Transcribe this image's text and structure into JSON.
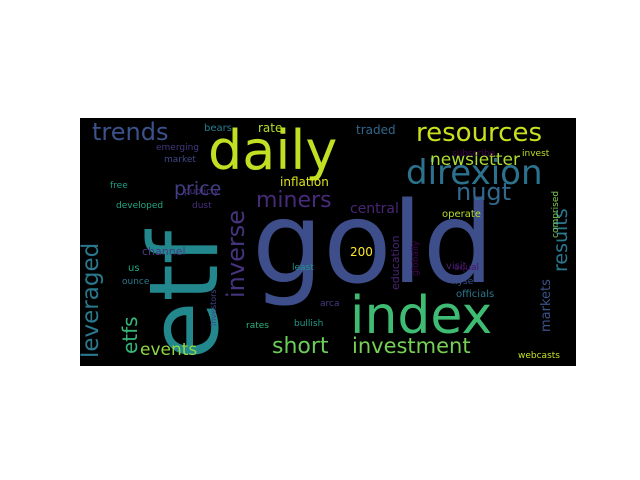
{
  "words": [
    {
      "id": "gold",
      "text": "gold",
      "color": "#3e4e8a"
    },
    {
      "id": "etf",
      "text": "etf",
      "color": "#23888e"
    },
    {
      "id": "daily",
      "text": "daily",
      "color": "#c2df23"
    },
    {
      "id": "index",
      "text": "index",
      "color": "#3fbc73"
    },
    {
      "id": "direxion",
      "text": "direxion",
      "color": "#2c728e"
    },
    {
      "id": "resources",
      "text": "resources",
      "color": "#c8e020"
    },
    {
      "id": "trends",
      "text": "trends",
      "color": "#3b528b"
    },
    {
      "id": "leveraged",
      "text": "leveraged",
      "color": "#2a788e"
    },
    {
      "id": "etfs",
      "text": "etfs",
      "color": "#35b779"
    },
    {
      "id": "inverse",
      "text": "inverse",
      "color": "#46337e"
    },
    {
      "id": "miners",
      "text": "miners",
      "color": "#472a7a"
    },
    {
      "id": "price",
      "text": "price",
      "color": "#433e85"
    },
    {
      "id": "nugt",
      "text": "nugt",
      "color": "#31688e"
    },
    {
      "id": "newsletter",
      "text": "newsletter",
      "color": "#aadc32"
    },
    {
      "id": "results",
      "text": "results",
      "color": "#2a788e"
    },
    {
      "id": "short",
      "text": "short",
      "color": "#6ccd5a"
    },
    {
      "id": "investment",
      "text": "investment",
      "color": "#75d054"
    },
    {
      "id": "events",
      "text": "events",
      "color": "#90d743"
    },
    {
      "id": "central",
      "text": "central",
      "color": "#482677"
    },
    {
      "id": "rate",
      "text": "rate",
      "color": "#b5de2b"
    },
    {
      "id": "traded",
      "text": "traded",
      "color": "#31688e"
    },
    {
      "id": "inflation",
      "text": "inflation",
      "color": "#dde318"
    },
    {
      "id": "bears",
      "text": "bears",
      "color": "#277f8e"
    },
    {
      "id": "emerging",
      "text": "emerging",
      "color": "#453781"
    },
    {
      "id": "market",
      "text": "market",
      "color": "#3e4989"
    },
    {
      "id": "free",
      "text": "free",
      "color": "#1f9f88"
    },
    {
      "id": "developed",
      "text": "developed",
      "color": "#22a884"
    },
    {
      "id": "dust",
      "text": "dust",
      "color": "#472d7b"
    },
    {
      "id": "publicly",
      "text": "publicly",
      "color": "#46307e"
    },
    {
      "id": "channel",
      "text": "channel",
      "color": "#443a83"
    },
    {
      "id": "us",
      "text": "us",
      "color": "#22a884"
    },
    {
      "id": "ounce",
      "text": "ounce",
      "color": "#2a788e"
    },
    {
      "id": "200",
      "text": "200",
      "color": "#fde725"
    },
    {
      "id": "education",
      "text": "education",
      "color": "#482475"
    },
    {
      "id": "least",
      "text": "least",
      "color": "#21918c"
    },
    {
      "id": "arca",
      "text": "arca",
      "color": "#433e85"
    },
    {
      "id": "rates",
      "text": "rates",
      "color": "#2db27d"
    },
    {
      "id": "investors",
      "text": "investors",
      "color": "#414487"
    },
    {
      "id": "bullish",
      "text": "bullish",
      "color": "#1f9a8a"
    },
    {
      "id": "subscribe",
      "text": "subscribe",
      "color": "#440154"
    },
    {
      "id": "invest",
      "text": "invest",
      "color": "#c0df25"
    },
    {
      "id": "operate",
      "text": "operate",
      "color": "#b8de29"
    },
    {
      "id": "visit",
      "text": "visit",
      "color": "#481f70"
    },
    {
      "id": "nyse",
      "text": "nyse",
      "color": "#3b528b"
    },
    {
      "id": "globally",
      "text": "globally",
      "color": "#440154"
    },
    {
      "id": "comprised",
      "text": "comprised",
      "color": "#7ad151"
    },
    {
      "id": "equal",
      "text": "equal",
      "color": "#471164"
    },
    {
      "id": "markets",
      "text": "markets",
      "color": "#3b528b"
    },
    {
      "id": "officials",
      "text": "officials",
      "color": "#2a788e"
    },
    {
      "id": "webcasts",
      "text": "webcasts",
      "color": "#c5e021"
    }
  ]
}
